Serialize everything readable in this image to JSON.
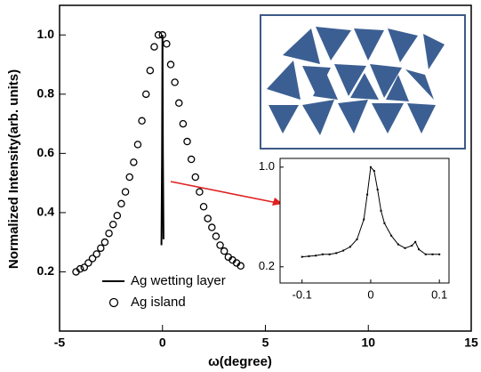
{
  "chart_data": [
    {
      "type": "scatter",
      "x_label": "ω(degree)",
      "y_label": "Normalized Intensity(arb. units)",
      "xlim": [
        -5,
        15
      ],
      "xticks": [
        -5,
        0,
        5,
        10,
        15
      ],
      "ylim": [
        0,
        1.1
      ],
      "yticks": [
        0.2,
        0.4,
        0.6,
        0.8,
        {
          "value": 1,
          "label": "1.0"
        }
      ],
      "legend": "lower center",
      "series": [
        {
          "name": "Ag wetting layer",
          "type": "line",
          "color": "#000000",
          "x": [
            -0.05,
            -0.02,
            0,
            0.02,
            0.05
          ],
          "values": [
            0.29,
            0.6,
            1.0,
            0.6,
            0.31
          ]
        },
        {
          "name": "Ag island",
          "type": "scatter",
          "marker": "circle",
          "color": "#000000",
          "x": [
            -4.2,
            -4.0,
            -3.8,
            -3.6,
            -3.4,
            -3.2,
            -3.0,
            -2.8,
            -2.6,
            -2.4,
            -2.2,
            -2.0,
            -1.8,
            -1.6,
            -1.4,
            -1.2,
            -1.0,
            -0.8,
            -0.6,
            -0.4,
            -0.2,
            0,
            0.2,
            0.4,
            0.6,
            0.8,
            1.0,
            1.2,
            1.4,
            1.6,
            1.8,
            2.0,
            2.2,
            2.4,
            2.6,
            2.8,
            3.0,
            3.2,
            3.4,
            3.6,
            3.8
          ],
          "values": [
            0.2,
            0.21,
            0.215,
            0.23,
            0.245,
            0.26,
            0.28,
            0.3,
            0.33,
            0.36,
            0.39,
            0.43,
            0.47,
            0.52,
            0.57,
            0.63,
            0.71,
            0.8,
            0.88,
            0.96,
            1.0,
            1.0,
            0.97,
            0.9,
            0.84,
            0.77,
            0.7,
            0.64,
            0.58,
            0.52,
            0.47,
            0.42,
            0.38,
            0.35,
            0.32,
            0.29,
            0.27,
            0.25,
            0.24,
            0.23,
            0.22
          ]
        }
      ]
    },
    {
      "type": "line",
      "xlim": [
        -0.132,
        0.114
      ],
      "xticks": [
        -0.1,
        0,
        0.1
      ],
      "ylim": [
        0.07,
        1.07
      ],
      "yticks": [
        0.2,
        {
          "value": 1,
          "label": "1.0"
        }
      ],
      "series": [
        {
          "type": "line",
          "marker": "square",
          "color": "#000000",
          "x": [
            -0.1,
            -0.09,
            -0.08,
            -0.07,
            -0.06,
            -0.05,
            -0.04,
            -0.03,
            -0.02,
            -0.01,
            -0.005,
            0,
            0.005,
            0.01,
            0.015,
            0.02,
            0.03,
            0.04,
            0.05,
            0.06,
            0.065,
            0.07,
            0.08,
            0.09,
            0.1
          ],
          "values": [
            0.28,
            0.285,
            0.29,
            0.3,
            0.3,
            0.31,
            0.33,
            0.36,
            0.42,
            0.58,
            0.78,
            1.0,
            0.97,
            0.82,
            0.65,
            0.55,
            0.45,
            0.38,
            0.35,
            0.37,
            0.4,
            0.34,
            0.3,
            0.3,
            0.3
          ]
        }
      ]
    }
  ]
}
